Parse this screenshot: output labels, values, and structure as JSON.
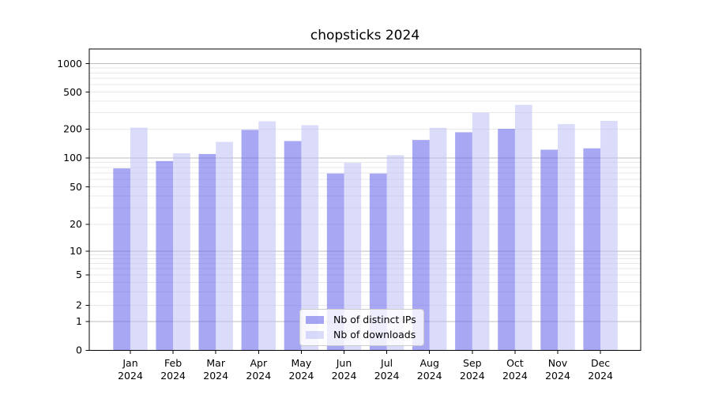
{
  "chart_data": {
    "type": "bar",
    "title": "chopsticks 2024",
    "categories": [
      "Jan 2024",
      "Feb 2024",
      "Mar 2024",
      "Apr 2024",
      "May 2024",
      "Jun 2024",
      "Jul 2024",
      "Aug 2024",
      "Sep 2024",
      "Oct 2024",
      "Nov 2024",
      "Dec 2024"
    ],
    "series": [
      {
        "name": "Nb of distinct IPs",
        "color": "#7171eb",
        "values": [
          78,
          93,
          110,
          196,
          150,
          69,
          69,
          154,
          185,
          201,
          122,
          126
        ]
      },
      {
        "name": "Nb of downloads",
        "color": "#bebef5",
        "values": [
          207,
          112,
          147,
          242,
          220,
          89,
          107,
          206,
          300,
          365,
          226,
          245
        ]
      }
    ],
    "xlabel": "",
    "ylabel": "",
    "yscale": "log-like",
    "y_ticks": [
      1000,
      500,
      200,
      100,
      50,
      20,
      10,
      5,
      2,
      1,
      0
    ],
    "ylim": [
      0,
      1400
    ],
    "grid": true,
    "legend_position": "lower center"
  }
}
